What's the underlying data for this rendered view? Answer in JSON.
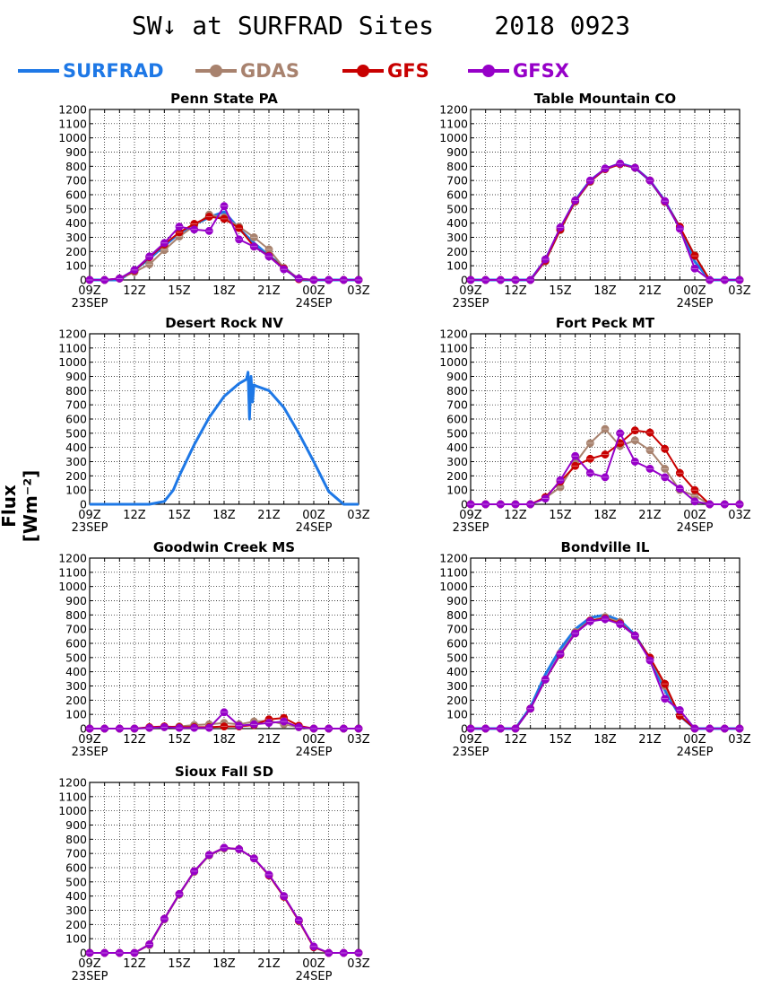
{
  "title": "SW↓ at SURFRAD Sites    2018 0923",
  "y_axis_label": "Flux [Wm⁻²]",
  "legend": [
    {
      "name": "SURFRAD",
      "color": "#1e78e6",
      "marker": false
    },
    {
      "name": "GDAS",
      "color": "#a8826e",
      "marker": true
    },
    {
      "name": "GFS",
      "color": "#c80000",
      "marker": true
    },
    {
      "name": "GFSX",
      "color": "#9600c8",
      "marker": true
    }
  ],
  "chart_data": [
    {
      "type": "line",
      "title": "Penn State PA",
      "x_ticks": [
        "09Z",
        "12Z",
        "15Z",
        "18Z",
        "21Z",
        "00Z",
        "03Z"
      ],
      "x_dates": [
        {
          "tick": "09Z",
          "label": "23SEP"
        },
        {
          "tick": "00Z",
          "label": "24SEP"
        }
      ],
      "x_unit": "hours from 09Z 23SEP",
      "xlim": [
        0,
        18
      ],
      "ylim": [
        0,
        1200
      ],
      "y_ticks": [
        0,
        100,
        200,
        300,
        400,
        500,
        600,
        700,
        800,
        900,
        1000,
        1100,
        1200
      ],
      "x": [
        0,
        1,
        2,
        3,
        4,
        5,
        6,
        7,
        8,
        9,
        10,
        11,
        12,
        13,
        14,
        15,
        16,
        17,
        18
      ],
      "series": [
        {
          "name": "SURFRAD",
          "values": [
            0,
            0,
            0,
            70,
            150,
            240,
            330,
            390,
            440,
            480,
            360,
            260,
            170,
            90,
            0,
            0,
            0,
            0,
            0
          ]
        },
        {
          "name": "GDAS",
          "values": [
            0,
            0,
            10,
            55,
            110,
            210,
            305,
            380,
            460,
            440,
            375,
            300,
            215,
            85,
            10,
            0,
            0,
            0,
            0
          ]
        },
        {
          "name": "GFS",
          "values": [
            0,
            0,
            10,
            65,
            160,
            250,
            335,
            395,
            445,
            430,
            365,
            235,
            170,
            80,
            5,
            0,
            0,
            0,
            0
          ]
        },
        {
          "name": "GFSX",
          "values": [
            0,
            0,
            10,
            70,
            165,
            260,
            375,
            355,
            345,
            520,
            285,
            235,
            165,
            75,
            10,
            0,
            0,
            0,
            0
          ]
        }
      ]
    },
    {
      "type": "line",
      "title": "Table Mountain CO",
      "x_ticks": [
        "09Z",
        "12Z",
        "15Z",
        "18Z",
        "21Z",
        "00Z",
        "03Z"
      ],
      "x_dates": [
        {
          "tick": "09Z",
          "label": "23SEP"
        },
        {
          "tick": "00Z",
          "label": "24SEP"
        }
      ],
      "x_unit": "hours from 09Z 23SEP",
      "xlim": [
        0,
        18
      ],
      "ylim": [
        0,
        1200
      ],
      "y_ticks": [
        0,
        100,
        200,
        300,
        400,
        500,
        600,
        700,
        800,
        900,
        1000,
        1100,
        1200
      ],
      "x": [
        0,
        1,
        2,
        3,
        4,
        5,
        6,
        7,
        8,
        9,
        10,
        11,
        12,
        13,
        14,
        15,
        16,
        17,
        18
      ],
      "series": [
        {
          "name": "SURFRAD",
          "values": [
            0,
            0,
            0,
            0,
            0,
            140,
            360,
            560,
            700,
            780,
            820,
            790,
            700,
            555,
            370,
            130,
            0,
            0,
            0
          ]
        },
        {
          "name": "GDAS",
          "values": [
            0,
            0,
            0,
            0,
            0,
            130,
            350,
            550,
            690,
            780,
            815,
            790,
            700,
            550,
            370,
            175,
            0,
            0,
            0
          ]
        },
        {
          "name": "GFS",
          "values": [
            0,
            0,
            0,
            0,
            0,
            135,
            355,
            555,
            695,
            780,
            815,
            790,
            700,
            550,
            375,
            170,
            0,
            0,
            0
          ]
        },
        {
          "name": "GFSX",
          "values": [
            0,
            0,
            0,
            0,
            0,
            145,
            370,
            560,
            700,
            785,
            820,
            790,
            700,
            555,
            360,
            80,
            0,
            0,
            0
          ]
        }
      ]
    },
    {
      "type": "line",
      "title": "Desert Rock NV",
      "x_ticks": [
        "09Z",
        "12Z",
        "15Z",
        "18Z",
        "21Z",
        "00Z",
        "03Z"
      ],
      "x_dates": [
        {
          "tick": "09Z",
          "label": "23SEP"
        },
        {
          "tick": "00Z",
          "label": "24SEP"
        }
      ],
      "x_unit": "hours from 09Z 23SEP",
      "xlim": [
        0,
        18
      ],
      "ylim": [
        0,
        1200
      ],
      "y_ticks": [
        0,
        100,
        200,
        300,
        400,
        500,
        600,
        700,
        800,
        900,
        1000,
        1100,
        1200
      ],
      "x": [
        0,
        1,
        2,
        3,
        4,
        5,
        5.6,
        6,
        7,
        8,
        9,
        10,
        10.5,
        10.6,
        10.7,
        10.8,
        10.9,
        11,
        11.2,
        12,
        13,
        14,
        15,
        16,
        17,
        18
      ],
      "series": [
        {
          "name": "SURFRAD",
          "values": [
            0,
            0,
            0,
            0,
            0,
            20,
            100,
            200,
            420,
            610,
            760,
            850,
            880,
            930,
            600,
            900,
            720,
            840,
            830,
            800,
            680,
            500,
            300,
            90,
            0,
            0
          ]
        }
      ]
    },
    {
      "type": "line",
      "title": "Fort Peck MT",
      "x_ticks": [
        "09Z",
        "12Z",
        "15Z",
        "18Z",
        "21Z",
        "00Z",
        "03Z"
      ],
      "x_dates": [
        {
          "tick": "09Z",
          "label": "23SEP"
        },
        {
          "tick": "00Z",
          "label": "24SEP"
        }
      ],
      "x_unit": "hours from 09Z 23SEP",
      "xlim": [
        0,
        18
      ],
      "ylim": [
        0,
        1200
      ],
      "y_ticks": [
        0,
        100,
        200,
        300,
        400,
        500,
        600,
        700,
        800,
        900,
        1000,
        1100,
        1200
      ],
      "x": [
        0,
        1,
        2,
        3,
        4,
        5,
        6,
        7,
        8,
        9,
        10,
        11,
        12,
        13,
        14,
        15,
        16,
        17,
        18
      ],
      "series": [
        {
          "name": "GDAS",
          "values": [
            0,
            0,
            0,
            0,
            0,
            45,
            120,
            290,
            430,
            530,
            410,
            450,
            380,
            250,
            100,
            60,
            0,
            0,
            0
          ]
        },
        {
          "name": "GFS",
          "values": [
            0,
            0,
            0,
            0,
            0,
            50,
            160,
            270,
            320,
            350,
            430,
            520,
            505,
            390,
            220,
            100,
            0,
            0,
            0
          ]
        },
        {
          "name": "GFSX",
          "values": [
            0,
            0,
            0,
            0,
            0,
            40,
            170,
            340,
            220,
            190,
            500,
            300,
            250,
            190,
            110,
            20,
            0,
            0,
            0
          ]
        }
      ]
    },
    {
      "type": "line",
      "title": "Goodwin Creek MS",
      "x_ticks": [
        "09Z",
        "12Z",
        "15Z",
        "18Z",
        "21Z",
        "00Z",
        "03Z"
      ],
      "x_dates": [
        {
          "tick": "09Z",
          "label": "23SEP"
        },
        {
          "tick": "00Z",
          "label": "24SEP"
        }
      ],
      "x_unit": "hours from 09Z 23SEP",
      "xlim": [
        0,
        18
      ],
      "ylim": [
        0,
        1200
      ],
      "y_ticks": [
        0,
        100,
        200,
        300,
        400,
        500,
        600,
        700,
        800,
        900,
        1000,
        1100,
        1200
      ],
      "x": [
        0,
        1,
        2,
        3,
        4,
        5,
        6,
        7,
        8,
        9,
        10,
        11,
        12,
        13,
        14,
        15,
        16,
        17,
        18
      ],
      "series": [
        {
          "name": "GDAS",
          "values": [
            0,
            0,
            0,
            0,
            5,
            10,
            15,
            25,
            30,
            40,
            30,
            50,
            55,
            30,
            10,
            0,
            0,
            0,
            0
          ]
        },
        {
          "name": "GFS",
          "values": [
            0,
            0,
            0,
            0,
            10,
            15,
            10,
            10,
            10,
            15,
            15,
            25,
            65,
            75,
            20,
            0,
            0,
            0,
            0
          ]
        },
        {
          "name": "GFSX",
          "values": [
            0,
            0,
            0,
            0,
            5,
            10,
            5,
            5,
            5,
            115,
            20,
            30,
            40,
            50,
            10,
            0,
            0,
            0,
            0
          ]
        }
      ]
    },
    {
      "type": "line",
      "title": "Bondville IL",
      "x_ticks": [
        "09Z",
        "12Z",
        "15Z",
        "18Z",
        "21Z",
        "00Z",
        "03Z"
      ],
      "x_dates": [
        {
          "tick": "09Z",
          "label": "23SEP"
        },
        {
          "tick": "00Z",
          "label": "24SEP"
        }
      ],
      "x_unit": "hours from 09Z 23SEP",
      "xlim": [
        0,
        18
      ],
      "ylim": [
        0,
        1200
      ],
      "y_ticks": [
        0,
        100,
        200,
        300,
        400,
        500,
        600,
        700,
        800,
        900,
        1000,
        1100,
        1200
      ],
      "x": [
        0,
        1,
        2,
        3,
        4,
        5,
        6,
        7,
        8,
        9,
        10,
        11,
        12,
        13,
        14,
        15,
        16,
        17,
        18
      ],
      "series": [
        {
          "name": "SURFRAD",
          "values": [
            0,
            0,
            0,
            0,
            150,
            380,
            560,
            700,
            780,
            800,
            760,
            660,
            490,
            270,
            90,
            0,
            0,
            0,
            0
          ]
        },
        {
          "name": "GDAS",
          "values": [
            0,
            0,
            0,
            0,
            140,
            345,
            530,
            680,
            760,
            785,
            750,
            650,
            500,
            300,
            95,
            0,
            0,
            0,
            0
          ]
        },
        {
          "name": "GFS",
          "values": [
            0,
            0,
            0,
            0,
            140,
            345,
            520,
            670,
            760,
            775,
            740,
            655,
            500,
            315,
            90,
            0,
            0,
            0,
            0
          ]
        },
        {
          "name": "GFSX",
          "values": [
            0,
            0,
            0,
            0,
            140,
            345,
            525,
            670,
            755,
            770,
            735,
            655,
            480,
            210,
            130,
            0,
            0,
            0,
            0
          ]
        }
      ]
    },
    {
      "type": "line",
      "title": "Sioux Fall SD",
      "x_ticks": [
        "09Z",
        "12Z",
        "15Z",
        "18Z",
        "21Z",
        "00Z",
        "03Z"
      ],
      "x_dates": [
        {
          "tick": "09Z",
          "label": "23SEP"
        },
        {
          "tick": "00Z",
          "label": "24SEP"
        }
      ],
      "x_unit": "hours from 09Z 23SEP",
      "xlim": [
        0,
        18
      ],
      "ylim": [
        0,
        1200
      ],
      "y_ticks": [
        0,
        100,
        200,
        300,
        400,
        500,
        600,
        700,
        800,
        900,
        1000,
        1100,
        1200
      ],
      "x": [
        0,
        1,
        2,
        3,
        4,
        5,
        6,
        7,
        8,
        9,
        10,
        11,
        12,
        13,
        14,
        15,
        16,
        17,
        18
      ],
      "series": [
        {
          "name": "GDAS",
          "values": [
            0,
            0,
            0,
            0,
            55,
            235,
            410,
            570,
            685,
            735,
            730,
            665,
            550,
            400,
            230,
            40,
            0,
            0,
            0
          ]
        },
        {
          "name": "GFS",
          "values": [
            0,
            0,
            0,
            0,
            60,
            240,
            415,
            575,
            690,
            740,
            730,
            665,
            545,
            395,
            225,
            40,
            0,
            0,
            0
          ]
        },
        {
          "name": "GFSX",
          "values": [
            0,
            0,
            0,
            0,
            60,
            240,
            415,
            575,
            690,
            740,
            730,
            665,
            550,
            400,
            230,
            45,
            0,
            0,
            0
          ]
        }
      ]
    }
  ]
}
